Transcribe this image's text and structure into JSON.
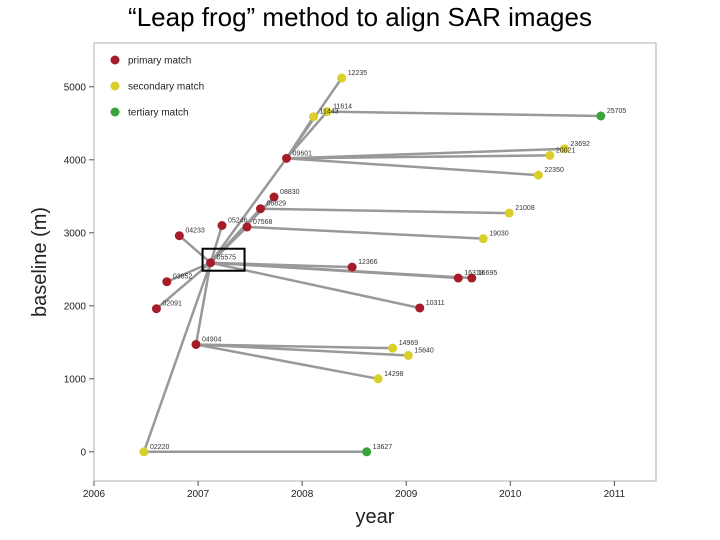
{
  "title": "“Leap frog” method to align SAR images",
  "chart_data": {
    "type": "scatter",
    "xlabel": "year",
    "ylabel": "baseline (m)",
    "xlim": [
      2006,
      2011.4
    ],
    "ylim": [
      -400,
      5600
    ],
    "xticks": [
      2006,
      2007,
      2008,
      2009,
      2010,
      2011
    ],
    "yticks": [
      0,
      1000,
      2000,
      3000,
      4000,
      5000
    ],
    "grid": false,
    "legend_position": "top-left",
    "colors": {
      "primary": "#a61c28",
      "secondary": "#d9cf2a",
      "tertiary": "#3aa33a",
      "line": "#999999"
    },
    "legend": [
      {
        "label": "primary match",
        "class": "primary"
      },
      {
        "label": "secondary match",
        "class": "secondary"
      },
      {
        "label": "tertiary match",
        "class": "tertiary"
      }
    ],
    "points": [
      {
        "id": "02220",
        "x": 2006.48,
        "y": 0,
        "class": "secondary"
      },
      {
        "id": "13627",
        "x": 2008.62,
        "y": 0,
        "class": "tertiary"
      },
      {
        "id": "04904",
        "x": 2006.98,
        "y": 1470,
        "class": "primary"
      },
      {
        "id": "14969",
        "x": 2008.87,
        "y": 1420,
        "class": "secondary"
      },
      {
        "id": "15640",
        "x": 2009.02,
        "y": 1320,
        "class": "secondary"
      },
      {
        "id": "14298",
        "x": 2008.73,
        "y": 1000,
        "class": "secondary"
      },
      {
        "id": "02091",
        "x": 2006.6,
        "y": 1960,
        "class": "primary"
      },
      {
        "id": "03652",
        "x": 2006.7,
        "y": 2330,
        "class": "primary"
      },
      {
        "id": "04233",
        "x": 2006.82,
        "y": 2960,
        "class": "primary"
      },
      {
        "id": "05575",
        "x": 2007.12,
        "y": 2590,
        "class": "primary"
      },
      {
        "id": "05246",
        "x": 2007.23,
        "y": 3100,
        "class": "primary"
      },
      {
        "id": "07568",
        "x": 2007.47,
        "y": 3080,
        "class": "primary"
      },
      {
        "id": "06829",
        "x": 2007.6,
        "y": 3330,
        "class": "primary"
      },
      {
        "id": "08830",
        "x": 2007.73,
        "y": 3490,
        "class": "primary"
      },
      {
        "id": "09601",
        "x": 2007.85,
        "y": 4020,
        "class": "primary"
      },
      {
        "id": "12366",
        "x": 2008.48,
        "y": 2530,
        "class": "primary"
      },
      {
        "id": "16318",
        "x": 2009.5,
        "y": 2380,
        "class": "primary"
      },
      {
        "id": "16695",
        "x": 2009.63,
        "y": 2380,
        "class": "primary"
      },
      {
        "id": "10311",
        "x": 2009.13,
        "y": 1970,
        "class": "primary"
      },
      {
        "id": "21008",
        "x": 2009.99,
        "y": 3270,
        "class": "secondary"
      },
      {
        "id": "19030",
        "x": 2009.74,
        "y": 2920,
        "class": "secondary"
      },
      {
        "id": "22350",
        "x": 2010.27,
        "y": 3790,
        "class": "secondary"
      },
      {
        "id": "20021",
        "x": 2010.38,
        "y": 4060,
        "class": "secondary"
      },
      {
        "id": "23692",
        "x": 2010.52,
        "y": 4150,
        "class": "secondary"
      },
      {
        "id": "12235",
        "x": 2008.38,
        "y": 5120,
        "class": "secondary"
      },
      {
        "id": "11614",
        "x": 2008.24,
        "y": 4660,
        "class": "secondary"
      },
      {
        "id": "11443",
        "x": 2008.11,
        "y": 4590,
        "class": "secondary"
      },
      {
        "id": "25705",
        "x": 2010.87,
        "y": 4600,
        "class": "tertiary"
      }
    ],
    "links": [
      [
        "02220",
        "13627"
      ],
      [
        "02220",
        "05575"
      ],
      [
        "04904",
        "14969"
      ],
      [
        "04904",
        "15640"
      ],
      [
        "04904",
        "14298"
      ],
      [
        "05575",
        "04904"
      ],
      [
        "05575",
        "02091"
      ],
      [
        "05575",
        "03652"
      ],
      [
        "05575",
        "04233"
      ],
      [
        "05575",
        "05246"
      ],
      [
        "05575",
        "07568"
      ],
      [
        "05575",
        "06829"
      ],
      [
        "05575",
        "08830"
      ],
      [
        "05575",
        "09601"
      ],
      [
        "05575",
        "12366"
      ],
      [
        "05575",
        "16318"
      ],
      [
        "05575",
        "16695"
      ],
      [
        "05575",
        "10311"
      ],
      [
        "06829",
        "21008"
      ],
      [
        "07568",
        "19030"
      ],
      [
        "09601",
        "22350"
      ],
      [
        "09601",
        "20021"
      ],
      [
        "09601",
        "23692"
      ],
      [
        "09601",
        "12235"
      ],
      [
        "09601",
        "11443"
      ],
      [
        "09601",
        "11614"
      ],
      [
        "11614",
        "25705"
      ]
    ],
    "highlight_point": "05575"
  }
}
